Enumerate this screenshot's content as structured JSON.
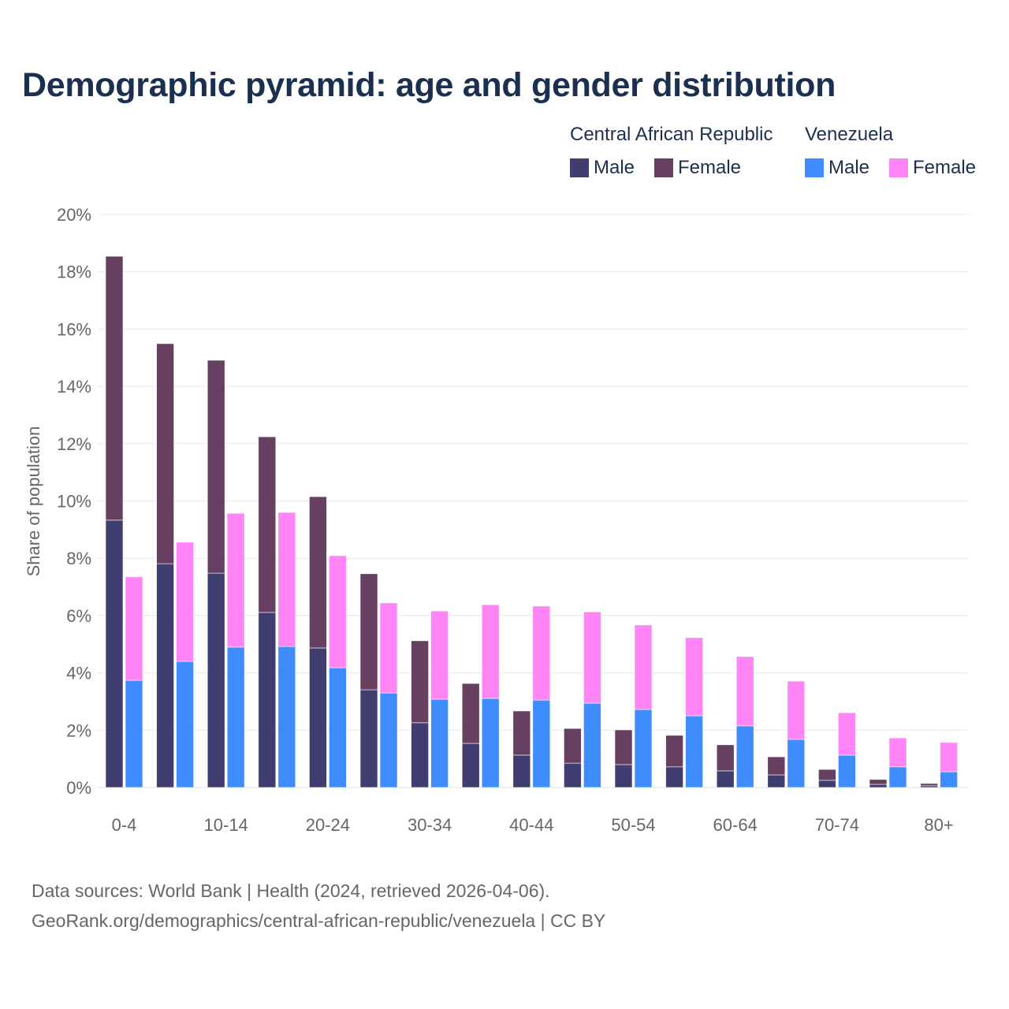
{
  "title": "Demographic pyramid: age and gender distribution",
  "legend": {
    "groups": [
      "Central African Republic",
      "Venezuela"
    ],
    "items": [
      {
        "label": "Male",
        "color": "#403d70"
      },
      {
        "label": "Female",
        "color": "#673f61"
      },
      {
        "label": "Male",
        "color": "#3f8cff"
      },
      {
        "label": "Female",
        "color": "#ff85f6"
      }
    ]
  },
  "footer": {
    "line1": "Data sources: World Bank | Health (2024, retrieved 2026-04-06).",
    "line2": "GeoRank.org/demographics/central-african-republic/venezuela | CC BY"
  },
  "chart_data": {
    "type": "bar",
    "stacked": true,
    "title": "Demographic pyramid: age and gender distribution",
    "ylabel": "Share of population",
    "xlabel": "",
    "ylim": [
      0,
      20
    ],
    "yticks": [
      "0%",
      "2%",
      "4%",
      "6%",
      "8%",
      "10%",
      "12%",
      "14%",
      "16%",
      "18%",
      "20%"
    ],
    "ytick_values": [
      0,
      2,
      4,
      6,
      8,
      10,
      12,
      14,
      16,
      18,
      20
    ],
    "categories": [
      "0-4",
      "5-9",
      "10-14",
      "15-19",
      "20-24",
      "25-29",
      "30-34",
      "35-39",
      "40-44",
      "45-49",
      "50-54",
      "55-59",
      "60-64",
      "65-69",
      "70-74",
      "75-79",
      "80+"
    ],
    "xtick_labels": [
      "0-4",
      "10-14",
      "20-24",
      "30-34",
      "40-44",
      "50-54",
      "60-64",
      "70-74",
      "80+"
    ],
    "grid": true,
    "legend_position": "top-right",
    "countries": [
      {
        "name": "Central African Republic",
        "series": [
          {
            "name": "Male",
            "color": "#403d70",
            "values": [
              9.33,
              7.81,
              7.48,
              6.11,
              4.87,
              3.41,
              2.26,
              1.54,
              1.13,
              0.85,
              0.8,
              0.72,
              0.58,
              0.44,
              0.25,
              0.11,
              0.06
            ]
          },
          {
            "name": "Female",
            "color": "#673f61",
            "values": [
              9.21,
              7.68,
              7.43,
              6.13,
              5.28,
              4.05,
              2.86,
              2.09,
              1.54,
              1.21,
              1.21,
              1.1,
              0.91,
              0.63,
              0.38,
              0.17,
              0.08
            ]
          }
        ]
      },
      {
        "name": "Venezuela",
        "series": [
          {
            "name": "Male",
            "color": "#3f8cff",
            "values": [
              3.74,
              4.4,
              4.9,
              4.92,
              4.18,
              3.3,
              3.08,
              3.11,
              3.05,
              2.94,
              2.72,
              2.5,
              2.15,
              1.68,
              1.13,
              0.72,
              0.55
            ]
          },
          {
            "name": "Female",
            "color": "#ff85f6",
            "values": [
              3.61,
              4.16,
              4.67,
              4.68,
              3.91,
              3.14,
              3.08,
              3.27,
              3.28,
              3.19,
              2.95,
              2.73,
              2.42,
              2.03,
              1.48,
              1.01,
              1.02
            ]
          }
        ]
      }
    ]
  }
}
